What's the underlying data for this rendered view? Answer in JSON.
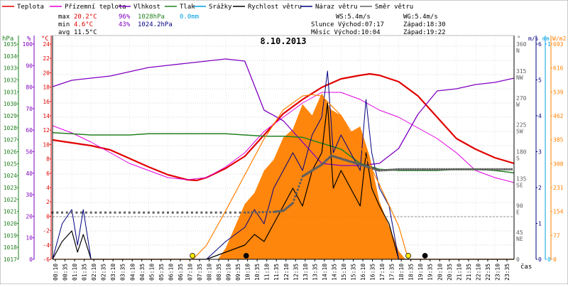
{
  "chart_data": {
    "type": "line",
    "title": "8.10.2013",
    "legend": [
      {
        "label": "Teplota",
        "color": "#e00000"
      },
      {
        "label": "Přízemní teplota",
        "color": "#e000e0"
      },
      {
        "label": "Vlhkost",
        "color": "#8000c0"
      },
      {
        "label": "Tlak",
        "color": "#208020"
      },
      {
        "label": "Srážky",
        "color": "#00a0e0"
      },
      {
        "label": "Rychlost větru",
        "color": "#000000"
      },
      {
        "label": "Náraz větru",
        "color": "#000080"
      },
      {
        "label": "Směr větru",
        "color": "#606060"
      }
    ],
    "stats": {
      "max": {
        "label": "max",
        "temp": "20.2°C",
        "hum": "96%",
        "press": "1028hPa",
        "rain": "0.0mm"
      },
      "min": {
        "label": "min",
        "temp": "4.6°C",
        "hum": "43%",
        "press": "1024.2hPa"
      },
      "avg": {
        "label": "avg",
        "temp": "11.5°C"
      }
    },
    "info": {
      "ws": "WS:5.4m/s",
      "wg": "WG:5.4m/s",
      "sun_rise": "Slunce Východ:07:17",
      "sun_set": "Západ:18:30",
      "moon_rise": "Měsíc Východ:10:04",
      "moon_set": "Západ:19:22"
    },
    "axes": {
      "hpa_unit": "hPa",
      "pct_unit": "%",
      "temp_unit": "°C",
      "dir_unit": "°",
      "ms_unit": "m/s",
      "mm_unit": "mm",
      "wm2_unit": "W/m2",
      "x_label": "čas",
      "hpa_ticks": [
        "1035",
        "1034",
        "1033",
        "1032",
        "1031",
        "1030",
        "1029",
        "1028",
        "1027",
        "1026",
        "1025",
        "1024",
        "1023",
        "1022",
        "1021",
        "1020",
        "1019",
        "1018",
        "1017"
      ],
      "pct_ticks": [
        "100",
        "90",
        "80",
        "70",
        "60",
        "50",
        "40",
        "30",
        "20",
        "10",
        "0"
      ],
      "temp_ticks": [
        "24",
        "22",
        "20",
        "18",
        "16",
        "14",
        "12",
        "10",
        "8",
        "6",
        "4",
        "2",
        "0",
        "-2",
        "-4",
        "-6"
      ],
      "dir_ticks": [
        {
          "deg": "360",
          "name": "N"
        },
        {
          "deg": "315",
          "name": "NW"
        },
        {
          "deg": "270",
          "name": "W"
        },
        {
          "deg": "225",
          "name": "SW"
        },
        {
          "deg": "180",
          "name": "S"
        },
        {
          "deg": "135",
          "name": "SE"
        },
        {
          "deg": "90",
          "name": "E"
        },
        {
          "deg": "45",
          "name": "NE"
        },
        {
          "deg": "0",
          "name": ""
        }
      ],
      "ms_ticks": [
        "6",
        "5",
        "4",
        "3",
        "2",
        "1",
        "0"
      ],
      "mm_ticks": [
        "1",
        "0"
      ],
      "wm2_ticks": [
        "693",
        "616",
        "539",
        "462",
        "385",
        "308",
        "231",
        "154",
        "77",
        "0"
      ],
      "time_ticks": [
        "00:10",
        "00:35",
        "01:10",
        "01:35",
        "02:10",
        "02:35",
        "03:10",
        "03:35",
        "04:10",
        "04:35",
        "05:10",
        "05:35",
        "06:10",
        "06:35",
        "07:10",
        "07:35",
        "08:10",
        "08:35",
        "09:10",
        "09:35",
        "10:10",
        "10:35",
        "11:10",
        "11:35",
        "12:10",
        "12:35",
        "13:10",
        "13:35",
        "14:10",
        "14:35",
        "15:10",
        "15:35",
        "16:10",
        "16:35",
        "17:10",
        "17:35",
        "18:10",
        "18:35",
        "19:10",
        "19:35",
        "20:10",
        "20:35",
        "21:10",
        "21:35",
        "22:10",
        "22:35",
        "23:10",
        "23:35"
      ]
    },
    "series": [
      {
        "name": "Teplota",
        "color": "#e00000",
        "unit": "°C",
        "x": [
          0,
          1,
          2,
          3,
          4,
          5,
          6,
          7,
          7.5,
          8,
          9,
          10,
          11,
          12,
          13,
          14,
          15,
          16,
          16.5,
          17,
          18,
          19,
          20,
          21,
          22,
          23,
          24
        ],
        "y": [
          10.8,
          10.4,
          10.0,
          9.4,
          8.2,
          7.0,
          5.9,
          5.2,
          5.1,
          5.5,
          6.8,
          8.5,
          11.5,
          14.5,
          16.5,
          18.2,
          19.4,
          19.9,
          20.1,
          19.9,
          19.0,
          17.0,
          14.0,
          11.0,
          9.5,
          8.3,
          7.5
        ]
      },
      {
        "name": "Přízemní teplota",
        "color": "#e000e0",
        "unit": "°C",
        "x": [
          0,
          1,
          2,
          3,
          4,
          5,
          6,
          7,
          8,
          9,
          10,
          11,
          12,
          13,
          14,
          15,
          16,
          17,
          18,
          19,
          20,
          21,
          22,
          23,
          24
        ],
        "y": [
          12.8,
          11.8,
          10.5,
          9.0,
          7.5,
          6.5,
          5.5,
          5.2,
          5.5,
          7.0,
          9.0,
          12.0,
          14.0,
          16.0,
          17.5,
          17.5,
          16.5,
          15.0,
          14.0,
          12.5,
          11.0,
          9.0,
          6.5,
          5.5,
          4.8
        ]
      },
      {
        "name": "Vlhkost",
        "color": "#8000c0",
        "unit": "%",
        "x": [
          0,
          1,
          2,
          3,
          4,
          5,
          6,
          7,
          8,
          9,
          10,
          11,
          12,
          13,
          14,
          15,
          16,
          17,
          18,
          19,
          20,
          21,
          22,
          23,
          24
        ],
        "y": [
          81,
          84,
          85,
          86,
          88,
          90,
          91,
          92,
          93,
          94,
          93,
          70,
          65,
          55,
          45,
          44,
          44,
          45,
          52,
          68,
          79,
          80,
          82,
          83,
          85
        ]
      },
      {
        "name": "Tlak",
        "color": "#208020",
        "unit": "hPa",
        "x": [
          0,
          1,
          2,
          3,
          4,
          5,
          6,
          7,
          8,
          9,
          10,
          11,
          12,
          13,
          14,
          15,
          16,
          17,
          18,
          19,
          20,
          21,
          22,
          23,
          24
        ],
        "y": [
          1027.7,
          1027.6,
          1027.5,
          1027.5,
          1027.5,
          1027.6,
          1027.6,
          1027.6,
          1027.6,
          1027.6,
          1027.5,
          1027.4,
          1027.4,
          1027.3,
          1026.8,
          1026.3,
          1025.1,
          1024.6,
          1024.5,
          1024.5,
          1024.5,
          1024.6,
          1024.6,
          1024.5,
          1024.3
        ]
      },
      {
        "name": "Rychlost větru",
        "color": "#000000",
        "unit": "m/s",
        "x": [
          0,
          0.5,
          1,
          1.3,
          1.6,
          2,
          2.5,
          8,
          9,
          10,
          10.5,
          11,
          11.5,
          12,
          12.5,
          13,
          13.5,
          14,
          14.3,
          14.6,
          15,
          15.5,
          16,
          16.3,
          16.6,
          17,
          17.5,
          18,
          24
        ],
        "y": [
          0,
          0.5,
          0.8,
          0.2,
          0.7,
          0,
          0,
          0,
          0.2,
          0.4,
          0.7,
          0.5,
          1.0,
          1.5,
          2.0,
          1.5,
          2.5,
          3.0,
          4.4,
          2.0,
          2.5,
          2.0,
          1.5,
          3.0,
          2.0,
          1.5,
          1.0,
          0,
          0
        ]
      },
      {
        "name": "Náraz větru",
        "color": "#000080",
        "unit": "m/s",
        "x": [
          0,
          0.5,
          1,
          1.3,
          1.6,
          2,
          2.5,
          8,
          9,
          10,
          10.5,
          11,
          11.5,
          12,
          12.5,
          13,
          13.5,
          14,
          14.3,
          14.6,
          15,
          15.5,
          16,
          16.3,
          16.6,
          17,
          17.5,
          18,
          24
        ],
        "y": [
          0,
          1.0,
          1.4,
          0.4,
          1.4,
          0,
          0,
          0,
          0.5,
          0.9,
          1.4,
          1.0,
          2.0,
          2.5,
          3.0,
          2.5,
          3.5,
          4.0,
          5.3,
          3.0,
          3.5,
          3.0,
          2.5,
          4.5,
          3.0,
          2.0,
          1.5,
          0,
          0
        ]
      },
      {
        "name": "Směr větru",
        "color": "#606060",
        "unit": "°",
        "x": [
          0,
          2,
          4,
          6,
          8,
          10,
          11.5,
          12,
          12.5,
          13,
          13.5,
          14,
          14.5,
          15,
          15.5,
          16,
          16.5,
          17,
          18,
          19,
          20,
          21,
          22,
          23,
          24
        ],
        "y": [
          79,
          79,
          79,
          79,
          79,
          79,
          80,
          82,
          95,
          140,
          150,
          160,
          175,
          170,
          165,
          160,
          155,
          150,
          152,
          152,
          152,
          152,
          152,
          152,
          152
        ]
      },
      {
        "name": "Srážky",
        "color": "#00a0e0",
        "unit": "mm",
        "x": [
          0,
          24
        ],
        "y": [
          0,
          0
        ]
      },
      {
        "name": "Sluneční záření",
        "color": "#ff8000",
        "unit": "W/m2",
        "x": [
          0,
          8.6,
          9,
          9.5,
          10,
          10.5,
          11,
          11.5,
          12,
          12.5,
          13,
          13.5,
          14,
          14.5,
          15,
          15.5,
          16,
          16.5,
          17,
          17.5,
          18,
          18.35,
          24
        ],
        "y": [
          0,
          0,
          40,
          120,
          200,
          240,
          320,
          360,
          440,
          470,
          560,
          520,
          600,
          540,
          520,
          460,
          480,
          370,
          210,
          120,
          30,
          0,
          0
        ]
      },
      {
        "name": "Teoretické záření",
        "color": "#ff8000",
        "unit": "W/m2",
        "x": [
          0,
          7.3,
          8,
          9,
          10,
          11,
          12,
          13,
          13.5,
          14,
          15,
          16,
          17,
          18,
          18.5,
          24
        ],
        "y": [
          0,
          0,
          50,
          175,
          305,
          435,
          540,
          590,
          595,
          590,
          520,
          410,
          270,
          120,
          0,
          0
        ]
      }
    ],
    "sun_markers": [
      {
        "name": "sunrise",
        "color": "#ffea00",
        "x": 7.28
      },
      {
        "name": "moonrise",
        "color": "#000000",
        "x": 10.07
      },
      {
        "name": "sunset",
        "color": "#ffea00",
        "x": 18.5
      },
      {
        "name": "moonset",
        "color": "#000000",
        "x": 19.37
      }
    ],
    "ranges": {
      "temp": [
        -6,
        25.5
      ],
      "hum": [
        0,
        105
      ],
      "press": [
        1017,
        1035.9
      ],
      "dir": [
        0,
        378
      ],
      "wind": [
        0,
        6.3
      ],
      "rad": [
        0,
        808.5
      ]
    }
  }
}
